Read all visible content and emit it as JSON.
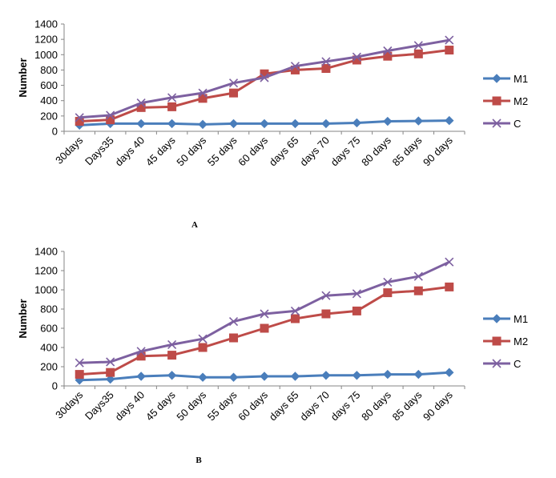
{
  "colors": {
    "M1": "#4a7ebb",
    "M2": "#be4b48",
    "C": "#7d60a0",
    "axis": "#868686"
  },
  "chart_data": [
    {
      "type": "line",
      "panel_label": "A",
      "ylabel": "Number",
      "ylim": [
        0,
        1400
      ],
      "yticks": [
        0,
        200,
        400,
        600,
        800,
        1000,
        1200,
        1400
      ],
      "grid": false,
      "legend": "right",
      "categories": [
        "30days",
        "Days35",
        "days 40",
        "45 days",
        "50 days",
        "55 days",
        "60 days",
        "days 65",
        "days 70",
        "days 75",
        "80 days",
        "85 days",
        "90 days"
      ],
      "series": [
        {
          "name": "M1",
          "marker": "diamond",
          "values": [
            80,
            100,
            100,
            100,
            90,
            100,
            100,
            100,
            100,
            110,
            130,
            135,
            140
          ]
        },
        {
          "name": "M2",
          "marker": "square",
          "values": [
            130,
            150,
            310,
            320,
            430,
            500,
            750,
            800,
            820,
            930,
            980,
            1010,
            1060
          ]
        },
        {
          "name": "C",
          "marker": "x",
          "values": [
            180,
            210,
            370,
            440,
            500,
            630,
            700,
            850,
            910,
            970,
            1050,
            1120,
            1190
          ]
        }
      ]
    },
    {
      "type": "line",
      "panel_label": "B",
      "ylabel": "Number",
      "ylim": [
        0,
        1400
      ],
      "yticks": [
        0,
        200,
        400,
        600,
        800,
        1000,
        1200,
        1400
      ],
      "grid": false,
      "legend": "right",
      "categories": [
        "30days",
        "Days35",
        "days 40",
        "45 days",
        "50 days",
        "55 days",
        "60 days",
        "days 65",
        "days 70",
        "days 75",
        "80 days",
        "85 days",
        "90 days"
      ],
      "series": [
        {
          "name": "M1",
          "marker": "diamond",
          "values": [
            60,
            70,
            100,
            110,
            90,
            90,
            100,
            100,
            110,
            110,
            120,
            120,
            140
          ]
        },
        {
          "name": "M2",
          "marker": "square",
          "values": [
            120,
            140,
            310,
            320,
            400,
            500,
            600,
            700,
            750,
            780,
            970,
            990,
            1030
          ]
        },
        {
          "name": "C",
          "marker": "x",
          "values": [
            240,
            250,
            360,
            430,
            490,
            670,
            750,
            780,
            940,
            960,
            1080,
            1140,
            1290
          ]
        }
      ]
    }
  ]
}
